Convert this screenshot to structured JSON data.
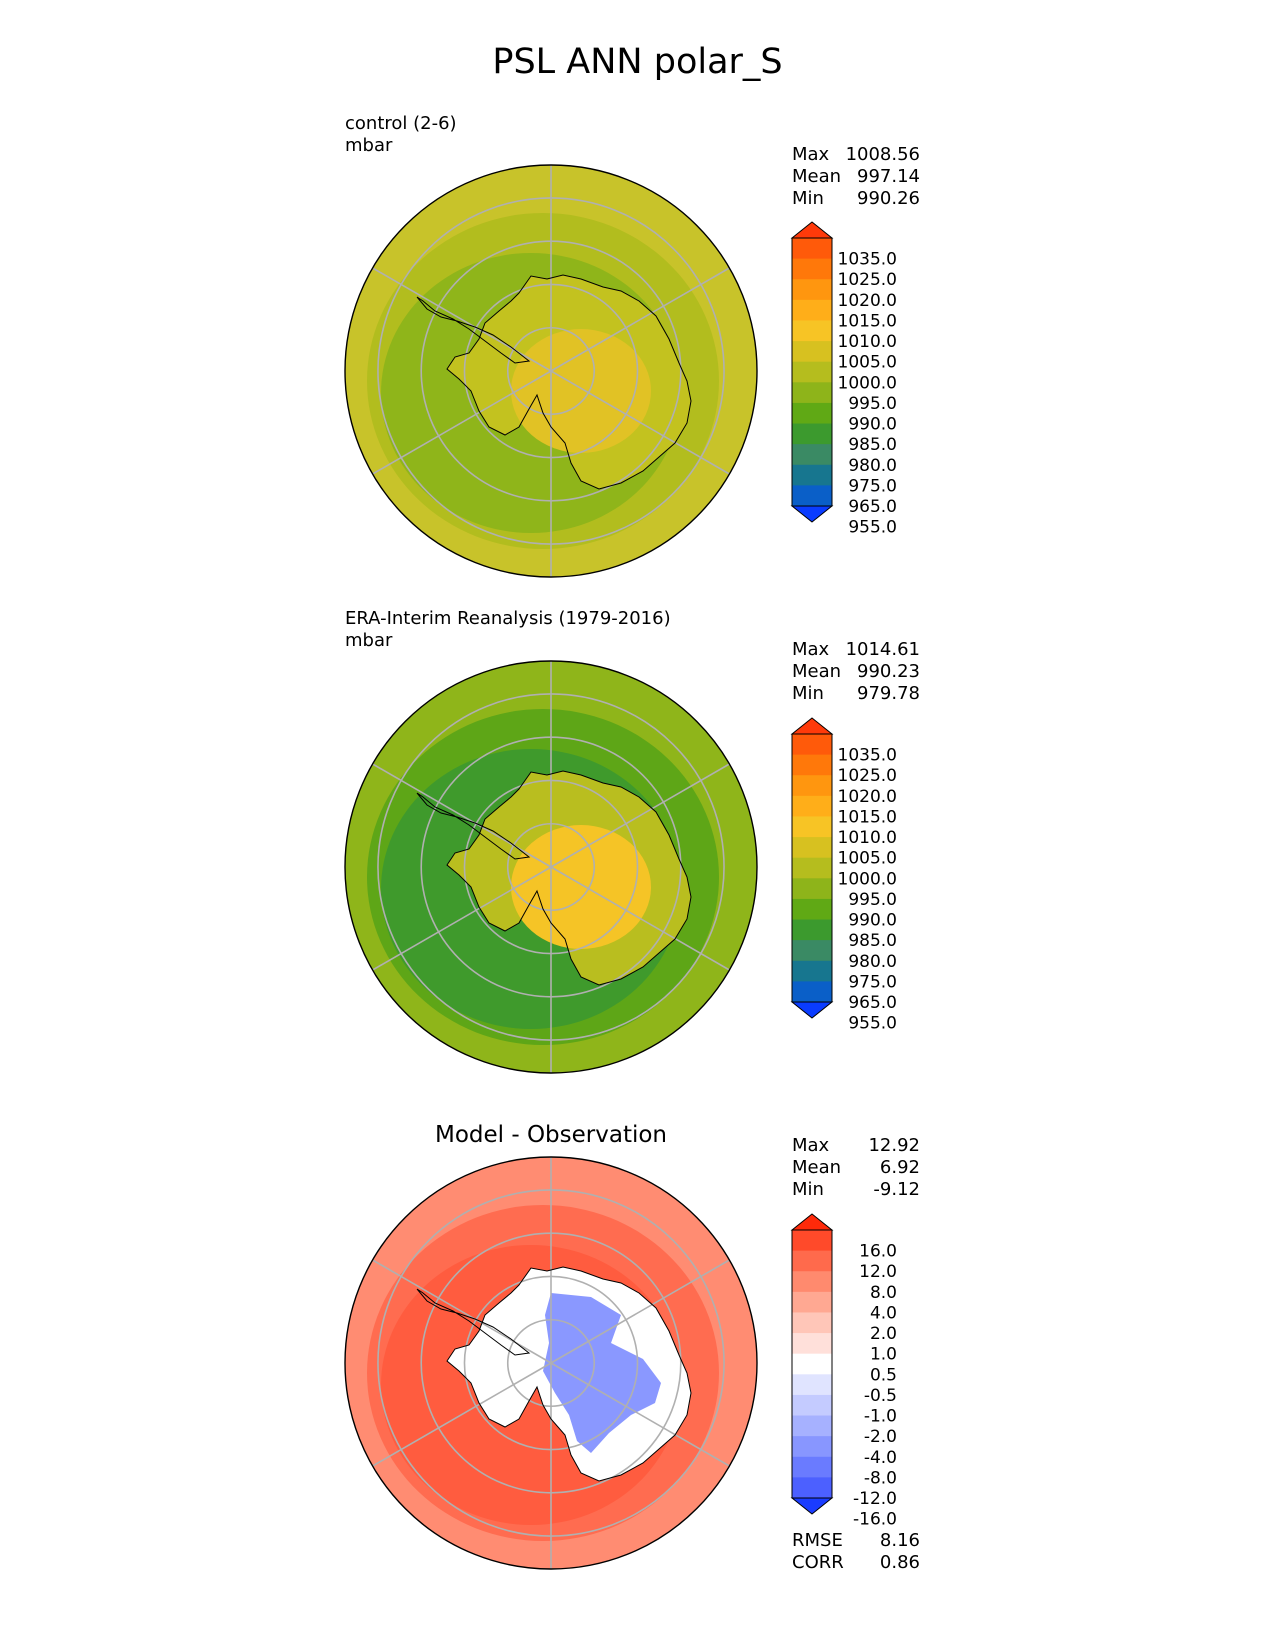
{
  "title": "PSL ANN polar_S",
  "panels": [
    {
      "name": "control",
      "label": "control (2-6)",
      "units": "mbar",
      "center_title": "",
      "stats": [
        {
          "k": "Max",
          "v": "1008.56"
        },
        {
          "k": "Mean",
          "v": "997.14"
        },
        {
          "k": "Min",
          "v": "990.26"
        }
      ],
      "colorbar": {
        "labels": [
          "1035.0",
          "1025.0",
          "1020.0",
          "1015.0",
          "1010.0",
          "1005.0",
          "1000.0",
          "995.0",
          "990.0",
          "985.0",
          "980.0",
          "975.0",
          "965.0",
          "955.0"
        ],
        "colors": [
          "#ff3a0a",
          "#ff5a0a",
          "#ff780a",
          "#ff960f",
          "#ffae19",
          "#f7c425",
          "#d7c120",
          "#b5bd1e",
          "#8eb41a",
          "#60a915",
          "#3c9a2e",
          "#3a8a64",
          "#17768f",
          "#0a5fc8",
          "#0a3cff"
        ]
      },
      "field": {
        "outer": "#c8c32a",
        "mid": "#b2bd1e",
        "inner": "#8fb51a",
        "land": "#c3c21f",
        "high": "#e1c225"
      }
    },
    {
      "name": "obs",
      "label": "ERA-Interim Reanalysis (1979-2016)",
      "units": "mbar",
      "center_title": "",
      "stats": [
        {
          "k": "Max",
          "v": "1014.61"
        },
        {
          "k": "Mean",
          "v": "990.23"
        },
        {
          "k": "Min",
          "v": "979.78"
        }
      ],
      "colorbar": {
        "labels": [
          "1035.0",
          "1025.0",
          "1020.0",
          "1015.0",
          "1010.0",
          "1005.0",
          "1000.0",
          "995.0",
          "990.0",
          "985.0",
          "980.0",
          "975.0",
          "965.0",
          "955.0"
        ],
        "colors": [
          "#ff3a0a",
          "#ff5a0a",
          "#ff780a",
          "#ff960f",
          "#ffae19",
          "#f7c425",
          "#d7c120",
          "#b5bd1e",
          "#8eb41a",
          "#60a915",
          "#3c9a2e",
          "#3a8a64",
          "#17768f",
          "#0a5fc8",
          "#0a3cff"
        ]
      },
      "field": {
        "outer": "#8fb51a",
        "mid": "#5ea617",
        "inner": "#3f9a2c",
        "land": "#b9be1f",
        "high": "#f5c426"
      }
    },
    {
      "name": "diff",
      "label": "",
      "units": "",
      "center_title": "Model - Observation",
      "stats": [
        {
          "k": "Max",
          "v": "12.92"
        },
        {
          "k": "Mean",
          "v": "6.92"
        },
        {
          "k": "Min",
          "v": "-9.12"
        }
      ],
      "extra_stats": [
        {
          "k": "RMSE",
          "v": "8.16"
        },
        {
          "k": "CORR",
          "v": "0.86"
        }
      ],
      "colorbar": {
        "labels": [
          "16.0",
          "12.0",
          "8.0",
          "4.0",
          "2.0",
          "1.0",
          "0.5",
          "-0.5",
          "-1.0",
          "-2.0",
          "-4.0",
          "-8.0",
          "-12.0",
          "-16.0"
        ],
        "colors": [
          "#ff2a0a",
          "#ff4a2a",
          "#ff6a4c",
          "#ff8a6e",
          "#ffa892",
          "#ffc6b8",
          "#ffe0da",
          "#ffffff",
          "#e0e4ff",
          "#c4cbff",
          "#a6b1ff",
          "#8896ff",
          "#6a7bff",
          "#4c60ff",
          "#1a3cff"
        ]
      },
      "field": {
        "outer": "#ff8c72",
        "mid": "#ff6c50",
        "inner": "#ff5c3f",
        "land": "#ffffff",
        "high": "#8a98ff"
      }
    }
  ]
}
